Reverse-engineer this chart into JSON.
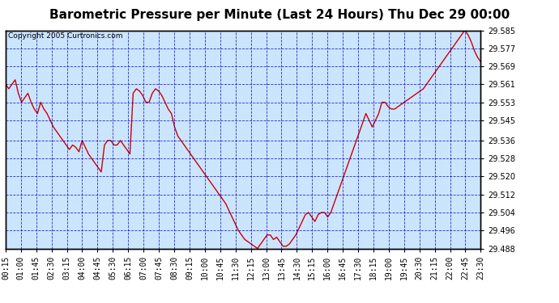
{
  "title": "Barometric Pressure per Minute (Last 24 Hours) Thu Dec 29 00:00",
  "copyright": "Copyright 2005 Curtronics.com",
  "ylabel_values": [
    29.488,
    29.496,
    29.504,
    29.512,
    29.52,
    29.528,
    29.536,
    29.545,
    29.553,
    29.561,
    29.569,
    29.577,
    29.585
  ],
  "ylim": [
    29.488,
    29.585
  ],
  "x_labels": [
    "00:15",
    "01:00",
    "01:45",
    "02:30",
    "03:15",
    "04:00",
    "04:45",
    "05:30",
    "06:15",
    "07:00",
    "07:45",
    "08:30",
    "09:15",
    "10:00",
    "10:45",
    "11:30",
    "12:15",
    "13:00",
    "13:45",
    "14:30",
    "15:15",
    "16:00",
    "16:45",
    "17:30",
    "18:15",
    "19:00",
    "19:45",
    "20:30",
    "21:15",
    "22:00",
    "22:45",
    "23:30"
  ],
  "line_color": "#cc0000",
  "bg_color": "#ffffff",
  "plot_bg_color": "#cce5ff",
  "grid_color": "#0000bb",
  "title_fontsize": 11,
  "tick_fontsize": 7,
  "copyright_fontsize": 6.5,
  "data_points": [
    29.561,
    29.559,
    29.561,
    29.563,
    29.557,
    29.553,
    29.555,
    29.557,
    29.553,
    29.55,
    29.548,
    29.553,
    29.55,
    29.548,
    29.545,
    29.542,
    29.54,
    29.538,
    29.536,
    29.534,
    29.532,
    29.534,
    29.533,
    29.531,
    29.536,
    29.533,
    29.53,
    29.528,
    29.526,
    29.524,
    29.522,
    29.534,
    29.536,
    29.536,
    29.534,
    29.534,
    29.536,
    29.534,
    29.532,
    29.53,
    29.557,
    29.559,
    29.558,
    29.556,
    29.553,
    29.553,
    29.557,
    29.559,
    29.558,
    29.556,
    29.553,
    29.55,
    29.548,
    29.542,
    29.538,
    29.536,
    29.534,
    29.532,
    29.53,
    29.528,
    29.526,
    29.524,
    29.522,
    29.52,
    29.518,
    29.516,
    29.514,
    29.512,
    29.51,
    29.508,
    29.505,
    29.502,
    29.499,
    29.496,
    29.494,
    29.492,
    29.491,
    29.49,
    29.489,
    29.488,
    29.49,
    29.492,
    29.494,
    29.494,
    29.492,
    29.493,
    29.491,
    29.489,
    29.489,
    29.49,
    29.492,
    29.494,
    29.497,
    29.5,
    29.503,
    29.504,
    29.502,
    29.5,
    29.503,
    29.504,
    29.504,
    29.502,
    29.504,
    29.508,
    29.512,
    29.516,
    29.52,
    29.524,
    29.528,
    29.532,
    29.536,
    29.54,
    29.544,
    29.548,
    29.545,
    29.542,
    29.545,
    29.548,
    29.553,
    29.553,
    29.551,
    29.55,
    29.55,
    29.551,
    29.552,
    29.553,
    29.554,
    29.555,
    29.556,
    29.557,
    29.558,
    29.559,
    29.561,
    29.563,
    29.565,
    29.567,
    29.569,
    29.571,
    29.573,
    29.575,
    29.577,
    29.579,
    29.581,
    29.583,
    29.585,
    29.583,
    29.58,
    29.576,
    29.573,
    29.571
  ]
}
